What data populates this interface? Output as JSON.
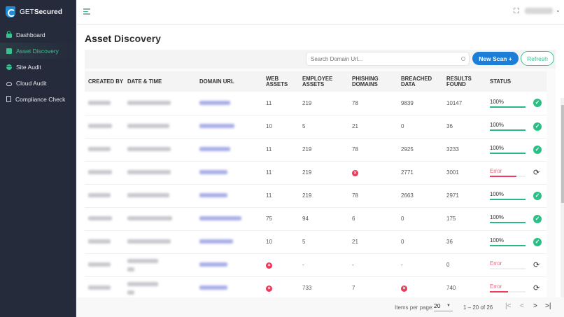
{
  "brand": {
    "prefix": "GET",
    "name": "Secured"
  },
  "sidebar": {
    "items": [
      {
        "label": "Dashboard",
        "icon": "lock-icon",
        "active": false
      },
      {
        "label": "Asset Discovery",
        "icon": "document-icon",
        "active": true
      },
      {
        "label": "Site Audit",
        "icon": "globe-icon",
        "active": false
      },
      {
        "label": "Cloud Audit",
        "icon": "cloud-icon",
        "active": false
      },
      {
        "label": "Compliance Check",
        "icon": "clipboard-icon",
        "active": false
      }
    ]
  },
  "topbar": {
    "user_menu_chevron": "⌄"
  },
  "page": {
    "title_bold": "Asset",
    "title_rest": " Discovery"
  },
  "toolbar": {
    "search_placeholder": "Search Domain Url...",
    "new_scan_label": "New Scan +",
    "refresh_label": "Refresh"
  },
  "table": {
    "columns": [
      "CREATED BY",
      "DATE & TIME",
      "DOMAIN URL",
      "WEB ASSETS",
      "EMPLOYEE ASSETS",
      "PHISHING DOMAINS",
      "BREACHED DATA",
      "RESULTS FOUND",
      "STATUS"
    ],
    "rows": [
      {
        "web_assets": "11",
        "employee_assets": "219",
        "phishing_domains": "78",
        "breached_data": "9839",
        "results_found": "10147",
        "status": "100%",
        "progress": 100,
        "state": "done"
      },
      {
        "web_assets": "10",
        "employee_assets": "5",
        "phishing_domains": "21",
        "breached_data": "0",
        "results_found": "36",
        "status": "100%",
        "progress": 100,
        "state": "done"
      },
      {
        "web_assets": "11",
        "employee_assets": "219",
        "phishing_domains": "78",
        "breached_data": "2925",
        "results_found": "3233",
        "status": "100%",
        "progress": 100,
        "state": "done"
      },
      {
        "web_assets": "11",
        "employee_assets": "219",
        "phishing_domains": "error",
        "breached_data": "2771",
        "results_found": "3001",
        "status": "Error",
        "progress": 75,
        "state": "error"
      },
      {
        "web_assets": "11",
        "employee_assets": "219",
        "phishing_domains": "78",
        "breached_data": "2663",
        "results_found": "2971",
        "status": "100%",
        "progress": 100,
        "state": "done"
      },
      {
        "web_assets": "75",
        "employee_assets": "94",
        "phishing_domains": "6",
        "breached_data": "0",
        "results_found": "175",
        "status": "100%",
        "progress": 100,
        "state": "done"
      },
      {
        "web_assets": "10",
        "employee_assets": "5",
        "phishing_domains": "21",
        "breached_data": "0",
        "results_found": "36",
        "status": "100%",
        "progress": 100,
        "state": "done"
      },
      {
        "web_assets": "error",
        "employee_assets": "-",
        "phishing_domains": "-",
        "breached_data": "-",
        "results_found": "0",
        "status": "Error",
        "progress": 0,
        "state": "error"
      },
      {
        "web_assets": "error",
        "employee_assets": "733",
        "phishing_domains": "7",
        "breached_data": "error",
        "results_found": "740",
        "status": "Error",
        "progress": 50,
        "state": "error"
      }
    ]
  },
  "pagination": {
    "items_per_page_label": "Items per page:",
    "items_per_page": "20",
    "range": "1 – 20 of 26",
    "first": "|<",
    "prev": "<",
    "next": ">",
    "last": ">|"
  },
  "colors": {
    "sidebar_bg": "#252b3b",
    "accent_green": "#2bbf85",
    "primary_blue": "#1c7ed6",
    "error_red": "#f03b5c"
  }
}
